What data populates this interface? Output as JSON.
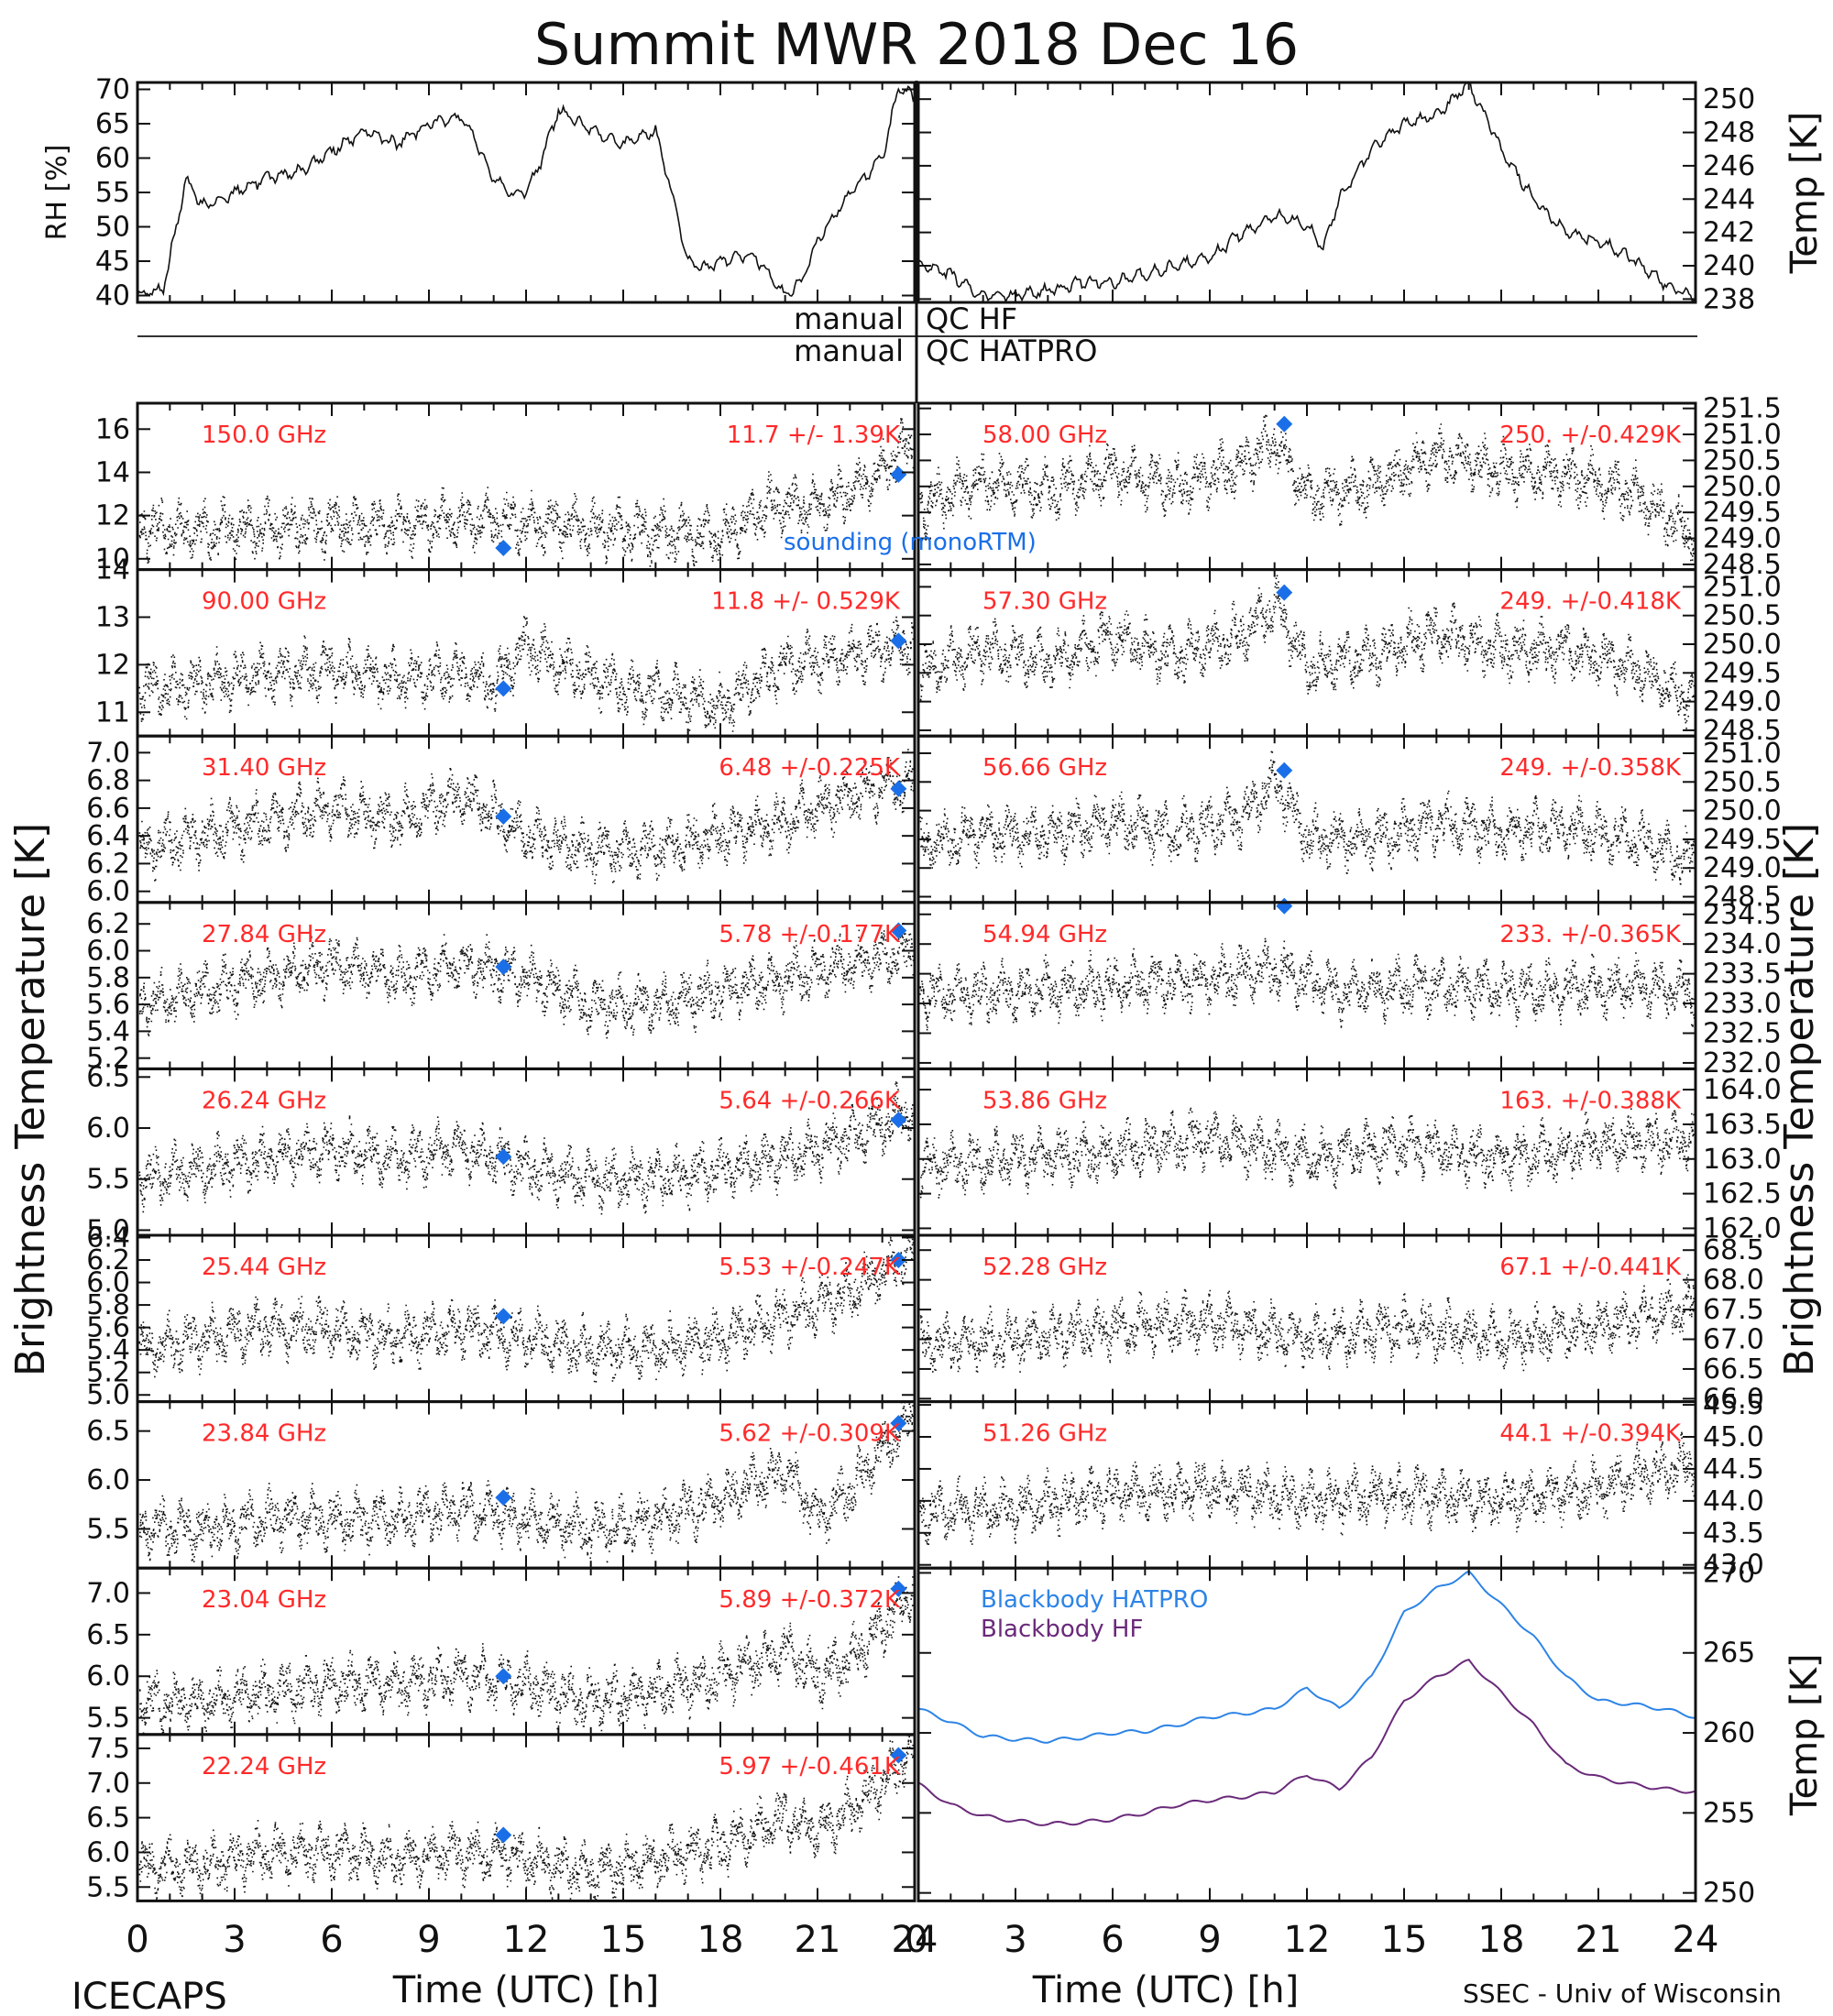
{
  "title": "Summit MWR 2018 Dec 16",
  "footer_left": "ICECAPS",
  "footer_right": "SSEC - Univ of Wisconsin",
  "colors": {
    "red_label": "#ff2a2a",
    "sounding": "#1a6fe8",
    "hatpro": "#2d84e6",
    "hf": "#6a2a7a",
    "trace": "#111111"
  },
  "x_axis": {
    "label": "Time (UTC) [h]",
    "ticks": [
      "0",
      "3",
      "6",
      "9",
      "12",
      "15",
      "18",
      "21",
      "24"
    ],
    "range": [
      0,
      24
    ]
  },
  "left_big_label": "Brightness Temperature [K]",
  "right_big_label": "Brightness Temperature [K]",
  "qc": {
    "left1": "manual",
    "right1": "QC HF",
    "left2": "manual",
    "right2": "QC HATPRO"
  },
  "chart_data": [
    {
      "type": "line",
      "id": "rh",
      "ylabel": "RH [%]",
      "ylim": [
        39,
        71
      ],
      "ticks": [
        "40",
        "45",
        "50",
        "55",
        "60",
        "65",
        "70"
      ],
      "tick_values": [
        40,
        45,
        50,
        55,
        60,
        65,
        70
      ],
      "x": [
        0,
        0.8,
        1.2,
        1.5,
        2,
        3,
        4,
        5,
        6,
        7,
        8,
        9,
        10,
        10.5,
        11,
        11.5,
        12,
        12.5,
        13,
        14,
        15,
        16,
        16.5,
        17,
        17.5,
        18,
        19,
        20,
        20.5,
        21,
        22,
        23,
        23.5,
        24
      ],
      "y": [
        40,
        41,
        50,
        57,
        53,
        55,
        57,
        58,
        61,
        64,
        62,
        65,
        66,
        62,
        57,
        55,
        55,
        60,
        67,
        64,
        62,
        64,
        55,
        45,
        44,
        45,
        46,
        40,
        42,
        48,
        55,
        60,
        70,
        69
      ]
    },
    {
      "type": "line",
      "id": "temp",
      "ylabel": "Temp [K]",
      "ylim": [
        237.8,
        251
      ],
      "ticks": [
        "238",
        "240",
        "242",
        "244",
        "246",
        "248",
        "250"
      ],
      "tick_values": [
        238,
        240,
        242,
        244,
        246,
        248,
        250
      ],
      "x": [
        0,
        1,
        2,
        3,
        4,
        5,
        6,
        7,
        8,
        9,
        10,
        11,
        12,
        12.5,
        13,
        14,
        15,
        16,
        17,
        18,
        19,
        20,
        21,
        22,
        23,
        24
      ],
      "y": [
        240,
        239.5,
        238.2,
        238.2,
        238.5,
        239,
        239,
        239.5,
        240,
        240.5,
        242,
        243,
        242.5,
        241,
        244,
        247,
        248.5,
        249,
        251,
        247,
        244,
        242,
        241.5,
        240.5,
        239,
        238
      ]
    },
    {
      "type": "scatter",
      "channel": "150.0 GHz",
      "stats": "11.7 +/- 1.39K",
      "ylim": [
        9.5,
        17.2
      ],
      "ticks": [
        "10",
        "12",
        "14",
        "16"
      ],
      "tick_values": [
        10,
        12,
        14,
        16
      ],
      "sounding": [
        [
          11.3,
          10.5
        ],
        [
          23.5,
          13.9
        ]
      ],
      "x": [
        0,
        2,
        4,
        6,
        8,
        10,
        12,
        14,
        16,
        18,
        19.5,
        21,
        22.5,
        24
      ],
      "y": [
        11.5,
        11.3,
        11.4,
        11.6,
        11.5,
        11.8,
        11.7,
        11.5,
        11.2,
        11,
        12.5,
        12.4,
        13.5,
        15.5
      ]
    },
    {
      "type": "scatter",
      "channel": "58.00 GHz",
      "stats": "250. +/-0.429K",
      "ylim": [
        248.4,
        251.6
      ],
      "ticks": [
        "248.5",
        "249.0",
        "249.5",
        "250.0",
        "250.5",
        "251.0",
        "251.5"
      ],
      "tick_values": [
        248.5,
        249.0,
        249.5,
        250.0,
        250.5,
        251.0,
        251.5
      ],
      "sounding": [
        [
          11.3,
          251.2
        ]
      ],
      "x": [
        0,
        2,
        4,
        6,
        8,
        10,
        11,
        12,
        14,
        16,
        18,
        20,
        22,
        24
      ],
      "y": [
        249.6,
        250.1,
        249.9,
        250.3,
        250.0,
        250.4,
        250.9,
        249.8,
        250.0,
        250.6,
        250.3,
        250.2,
        249.9,
        249.0
      ]
    },
    {
      "type": "scatter",
      "channel": "90.00 GHz",
      "stats": "11.8 +/- 0.529K",
      "ylim": [
        10.5,
        14
      ],
      "ticks": [
        "11",
        "12",
        "13",
        "14"
      ],
      "tick_values": [
        11,
        12,
        13,
        14
      ],
      "sounding": [
        [
          11.3,
          11.5
        ],
        [
          23.5,
          12.5
        ]
      ],
      "x": [
        0,
        2,
        4,
        6,
        8,
        10,
        11,
        12,
        13,
        15,
        17,
        18,
        19,
        20,
        22,
        24
      ],
      "y": [
        11.5,
        11.6,
        11.8,
        11.9,
        11.7,
        11.8,
        11.6,
        12.4,
        12.0,
        11.5,
        11.3,
        11.1,
        11.6,
        12.0,
        12.2,
        12.5
      ]
    },
    {
      "type": "scatter",
      "channel": "57.30 GHz",
      "stats": "249. +/-0.418K",
      "ylim": [
        248.4,
        251.3
      ],
      "ticks": [
        "248.5",
        "249.0",
        "249.5",
        "250.0",
        "250.5",
        "251.0"
      ],
      "tick_values": [
        248.5,
        249.0,
        249.5,
        250.0,
        250.5,
        251.0
      ],
      "sounding": [
        [
          11.3,
          250.9
        ]
      ],
      "x": [
        0,
        2,
        4,
        6,
        8,
        10,
        11,
        12,
        14,
        16,
        18,
        20,
        22,
        24
      ],
      "y": [
        249.5,
        249.9,
        249.7,
        250.1,
        249.8,
        250.2,
        250.7,
        249.6,
        249.8,
        250.2,
        249.9,
        249.9,
        249.6,
        249.0
      ]
    },
    {
      "type": "scatter",
      "channel": "31.40 GHz",
      "stats": "6.48 +/-0.225K",
      "ylim": [
        5.92,
        7.12
      ],
      "ticks": [
        "6.0",
        "6.2",
        "6.4",
        "6.6",
        "6.8",
        "7.0"
      ],
      "tick_values": [
        6.0,
        6.2,
        6.4,
        6.6,
        6.8,
        7.0
      ],
      "sounding": [
        [
          11.3,
          6.54
        ],
        [
          23.5,
          6.74
        ]
      ],
      "x": [
        0,
        2,
        4,
        6,
        8,
        10,
        12,
        14,
        16,
        18,
        20,
        22,
        24
      ],
      "y": [
        6.3,
        6.4,
        6.5,
        6.6,
        6.5,
        6.7,
        6.4,
        6.3,
        6.3,
        6.4,
        6.5,
        6.7,
        6.8
      ]
    },
    {
      "type": "scatter",
      "channel": "56.66 GHz",
      "stats": "249. +/-0.358K",
      "ylim": [
        248.4,
        251.3
      ],
      "ticks": [
        "248.5",
        "249.0",
        "249.5",
        "250.0",
        "250.5",
        "251.0"
      ],
      "tick_values": [
        248.5,
        249.0,
        249.5,
        250.0,
        250.5,
        251.0
      ],
      "sounding": [
        [
          11.3,
          250.7
        ]
      ],
      "x": [
        0,
        2,
        4,
        6,
        8,
        10,
        11,
        12,
        14,
        16,
        18,
        20,
        22,
        24
      ],
      "y": [
        249.4,
        249.6,
        249.6,
        249.8,
        249.6,
        249.9,
        250.5,
        249.5,
        249.5,
        249.8,
        249.6,
        249.7,
        249.5,
        249.1
      ]
    },
    {
      "type": "scatter",
      "channel": "27.84 GHz",
      "stats": "5.78 +/-0.177K",
      "ylim": [
        5.12,
        6.36
      ],
      "ticks": [
        "5.2",
        "5.4",
        "5.6",
        "5.8",
        "6.0",
        "6.2"
      ],
      "tick_values": [
        5.2,
        5.4,
        5.6,
        5.8,
        6.0,
        6.2
      ],
      "sounding": [
        [
          11.3,
          5.88
        ],
        [
          23.5,
          6.15
        ]
      ],
      "x": [
        0,
        2,
        4,
        6,
        8,
        10,
        12,
        14,
        16,
        18,
        20,
        22,
        24
      ],
      "y": [
        5.6,
        5.7,
        5.8,
        5.9,
        5.8,
        5.9,
        5.8,
        5.6,
        5.6,
        5.7,
        5.8,
        5.9,
        6.0
      ]
    },
    {
      "type": "scatter",
      "channel": "54.94 GHz",
      "stats": "233. +/-0.365K",
      "ylim": [
        231.9,
        234.7
      ],
      "ticks": [
        "232.0",
        "232.5",
        "233.0",
        "233.5",
        "234.0",
        "234.5"
      ],
      "tick_values": [
        232.0,
        232.5,
        233.0,
        233.5,
        234.0,
        234.5
      ],
      "sounding": [
        [
          11.3,
          234.7
        ]
      ],
      "x": [
        0,
        3,
        6,
        9,
        11,
        13,
        16,
        19,
        22,
        24
      ],
      "y": [
        233.1,
        233.2,
        233.3,
        233.4,
        233.6,
        233.2,
        233.3,
        233.2,
        233.3,
        233.2
      ]
    },
    {
      "type": "scatter",
      "channel": "26.24 GHz",
      "stats": "5.64 +/-0.266K",
      "ylim": [
        4.95,
        6.58
      ],
      "ticks": [
        "5.0",
        "5.5",
        "6.0",
        "6.5"
      ],
      "tick_values": [
        5.0,
        5.5,
        6.0,
        6.5
      ],
      "sounding": [
        [
          11.3,
          5.72
        ],
        [
          23.5,
          6.08
        ]
      ],
      "x": [
        0,
        2,
        4,
        6,
        8,
        10,
        12,
        14,
        16,
        18,
        20,
        22,
        24
      ],
      "y": [
        5.5,
        5.6,
        5.7,
        5.8,
        5.7,
        5.8,
        5.6,
        5.5,
        5.5,
        5.6,
        5.7,
        5.9,
        6.2
      ]
    },
    {
      "type": "scatter",
      "channel": "53.86 GHz",
      "stats": "163. +/-0.388K",
      "ylim": [
        161.9,
        164.3
      ],
      "ticks": [
        "162.0",
        "162.5",
        "163.0",
        "163.5",
        "164.0"
      ],
      "tick_values": [
        162.0,
        162.5,
        163.0,
        163.5,
        164.0
      ],
      "sounding": [],
      "x": [
        0,
        3,
        6,
        9,
        12,
        15,
        18,
        21,
        24
      ],
      "y": [
        162.9,
        163.0,
        163.1,
        163.3,
        163.0,
        163.2,
        163.0,
        163.2,
        163.3
      ]
    },
    {
      "type": "scatter",
      "channel": "25.44 GHz",
      "stats": "5.53 +/-0.247K",
      "ylim": [
        4.94,
        6.42
      ],
      "ticks": [
        "5.0",
        "5.2",
        "5.4",
        "5.6",
        "5.8",
        "6.0",
        "6.2",
        "6.4"
      ],
      "tick_values": [
        5.0,
        5.2,
        5.4,
        5.6,
        5.8,
        6.0,
        6.2,
        6.4
      ],
      "sounding": [
        [
          11.3,
          5.7
        ],
        [
          23.5,
          6.2
        ]
      ],
      "x": [
        0,
        2,
        4,
        6,
        8,
        10,
        12,
        14,
        16,
        18,
        20,
        22,
        24
      ],
      "y": [
        5.4,
        5.5,
        5.6,
        5.6,
        5.5,
        5.6,
        5.5,
        5.4,
        5.4,
        5.5,
        5.7,
        5.9,
        6.3
      ]
    },
    {
      "type": "scatter",
      "channel": "52.28 GHz",
      "stats": "67.1 +/-0.441K",
      "ylim": [
        65.95,
        68.75
      ],
      "ticks": [
        "66.0",
        "66.5",
        "67.0",
        "67.5",
        "68.0",
        "68.5"
      ],
      "tick_values": [
        66.0,
        66.5,
        67.0,
        67.5,
        68.0,
        68.5
      ],
      "sounding": [],
      "x": [
        0,
        3,
        6,
        9,
        12,
        15,
        18,
        21,
        24
      ],
      "y": [
        66.9,
        67.0,
        67.2,
        67.3,
        67.0,
        67.2,
        67.0,
        67.2,
        67.6
      ]
    },
    {
      "type": "scatter",
      "channel": "23.84 GHz",
      "stats": "5.62 +/-0.309K",
      "ylim": [
        5.1,
        6.8
      ],
      "ticks": [
        "5.5",
        "6.0",
        "6.5"
      ],
      "tick_values": [
        5.5,
        6.0,
        6.5
      ],
      "sounding": [
        [
          11.3,
          5.82
        ],
        [
          23.5,
          6.58
        ]
      ],
      "x": [
        0,
        2,
        4,
        6,
        8,
        10,
        12,
        14,
        16,
        18,
        20,
        21,
        22,
        23,
        24
      ],
      "y": [
        5.5,
        5.5,
        5.6,
        5.6,
        5.6,
        5.7,
        5.6,
        5.5,
        5.6,
        5.8,
        6.1,
        5.6,
        5.9,
        6.3,
        6.7
      ]
    },
    {
      "type": "scatter",
      "channel": "51.26 GHz",
      "stats": "44.1 +/-0.394K",
      "ylim": [
        42.95,
        45.55
      ],
      "ticks": [
        "43.0",
        "43.5",
        "44.0",
        "44.5",
        "45.0",
        "45.5"
      ],
      "tick_values": [
        43.0,
        43.5,
        44.0,
        44.5,
        45.0,
        45.5
      ],
      "sounding": [],
      "x": [
        0,
        3,
        6,
        9,
        12,
        15,
        18,
        21,
        24
      ],
      "y": [
        43.8,
        43.9,
        44.1,
        44.2,
        44.0,
        44.1,
        44.0,
        44.2,
        44.6
      ]
    },
    {
      "type": "scatter",
      "channel": "23.04 GHz",
      "stats": "5.89 +/-0.372K",
      "ylim": [
        5.3,
        7.3
      ],
      "ticks": [
        "5.5",
        "6.0",
        "6.5",
        "7.0"
      ],
      "tick_values": [
        5.5,
        6.0,
        6.5,
        7.0
      ],
      "sounding": [
        [
          11.3,
          6.0
        ],
        [
          23.5,
          7.05
        ]
      ],
      "x": [
        0,
        2,
        4,
        6,
        8,
        10,
        12,
        14,
        16,
        18,
        20,
        21,
        22,
        23,
        24
      ],
      "y": [
        5.7,
        5.7,
        5.8,
        5.9,
        5.9,
        6.0,
        5.9,
        5.7,
        5.8,
        6.0,
        6.3,
        6.0,
        6.2,
        6.6,
        7.1
      ]
    },
    {
      "type": "line",
      "id": "blackbody",
      "ylabel": "Temp [K]",
      "ylim": [
        249.5,
        270.3
      ],
      "ticks": [
        "250",
        "255",
        "260",
        "265",
        "270"
      ],
      "tick_values": [
        250,
        255,
        260,
        265,
        270
      ],
      "series": [
        {
          "name": "Blackbody HATPRO",
          "x": [
            0,
            1,
            2,
            3,
            4,
            5,
            6,
            7,
            8,
            9,
            10,
            11,
            12,
            13,
            14,
            15,
            16,
            17,
            18,
            19,
            20,
            21,
            22,
            23,
            24
          ],
          "y": [
            261.5,
            260.7,
            259.8,
            259.6,
            259.5,
            259.7,
            260.0,
            260.1,
            260.5,
            261.0,
            261.2,
            261.5,
            262.8,
            261.5,
            263.5,
            267.5,
            269.0,
            270.0,
            268.0,
            266.0,
            263.5,
            262.0,
            261.8,
            261.5,
            261.0
          ]
        },
        {
          "name": "Blackbody HF",
          "x": [
            0,
            1,
            2,
            3,
            4,
            5,
            6,
            7,
            8,
            9,
            10,
            11,
            12,
            13,
            14,
            15,
            16,
            17,
            18,
            19,
            20,
            21,
            22,
            23,
            24
          ],
          "y": [
            256.8,
            255.5,
            254.8,
            254.5,
            254.3,
            254.4,
            254.6,
            255.0,
            255.5,
            255.8,
            256.0,
            256.3,
            257.4,
            256.5,
            258.5,
            262.0,
            263.5,
            264.5,
            262.5,
            260.5,
            258.0,
            257.2,
            256.8,
            256.5,
            256.3
          ]
        }
      ]
    },
    {
      "type": "scatter",
      "channel": "22.24 GHz",
      "stats": "5.97 +/-0.461K",
      "ylim": [
        5.3,
        7.7
      ],
      "ticks": [
        "5.5",
        "6.0",
        "6.5",
        "7.0",
        "7.5"
      ],
      "tick_values": [
        5.5,
        6.0,
        6.5,
        7.0,
        7.5
      ],
      "sounding": [
        [
          11.3,
          6.25
        ],
        [
          23.5,
          7.4
        ]
      ],
      "x": [
        0,
        2,
        4,
        6,
        8,
        10,
        12,
        14,
        16,
        18,
        20,
        21,
        22,
        23,
        24
      ],
      "y": [
        5.8,
        5.8,
        6.0,
        6.0,
        5.9,
        6.0,
        5.9,
        5.7,
        5.9,
        6.1,
        6.5,
        6.3,
        6.6,
        7.0,
        7.5
      ]
    }
  ],
  "sounding_legend": "sounding (monoRTM)"
}
